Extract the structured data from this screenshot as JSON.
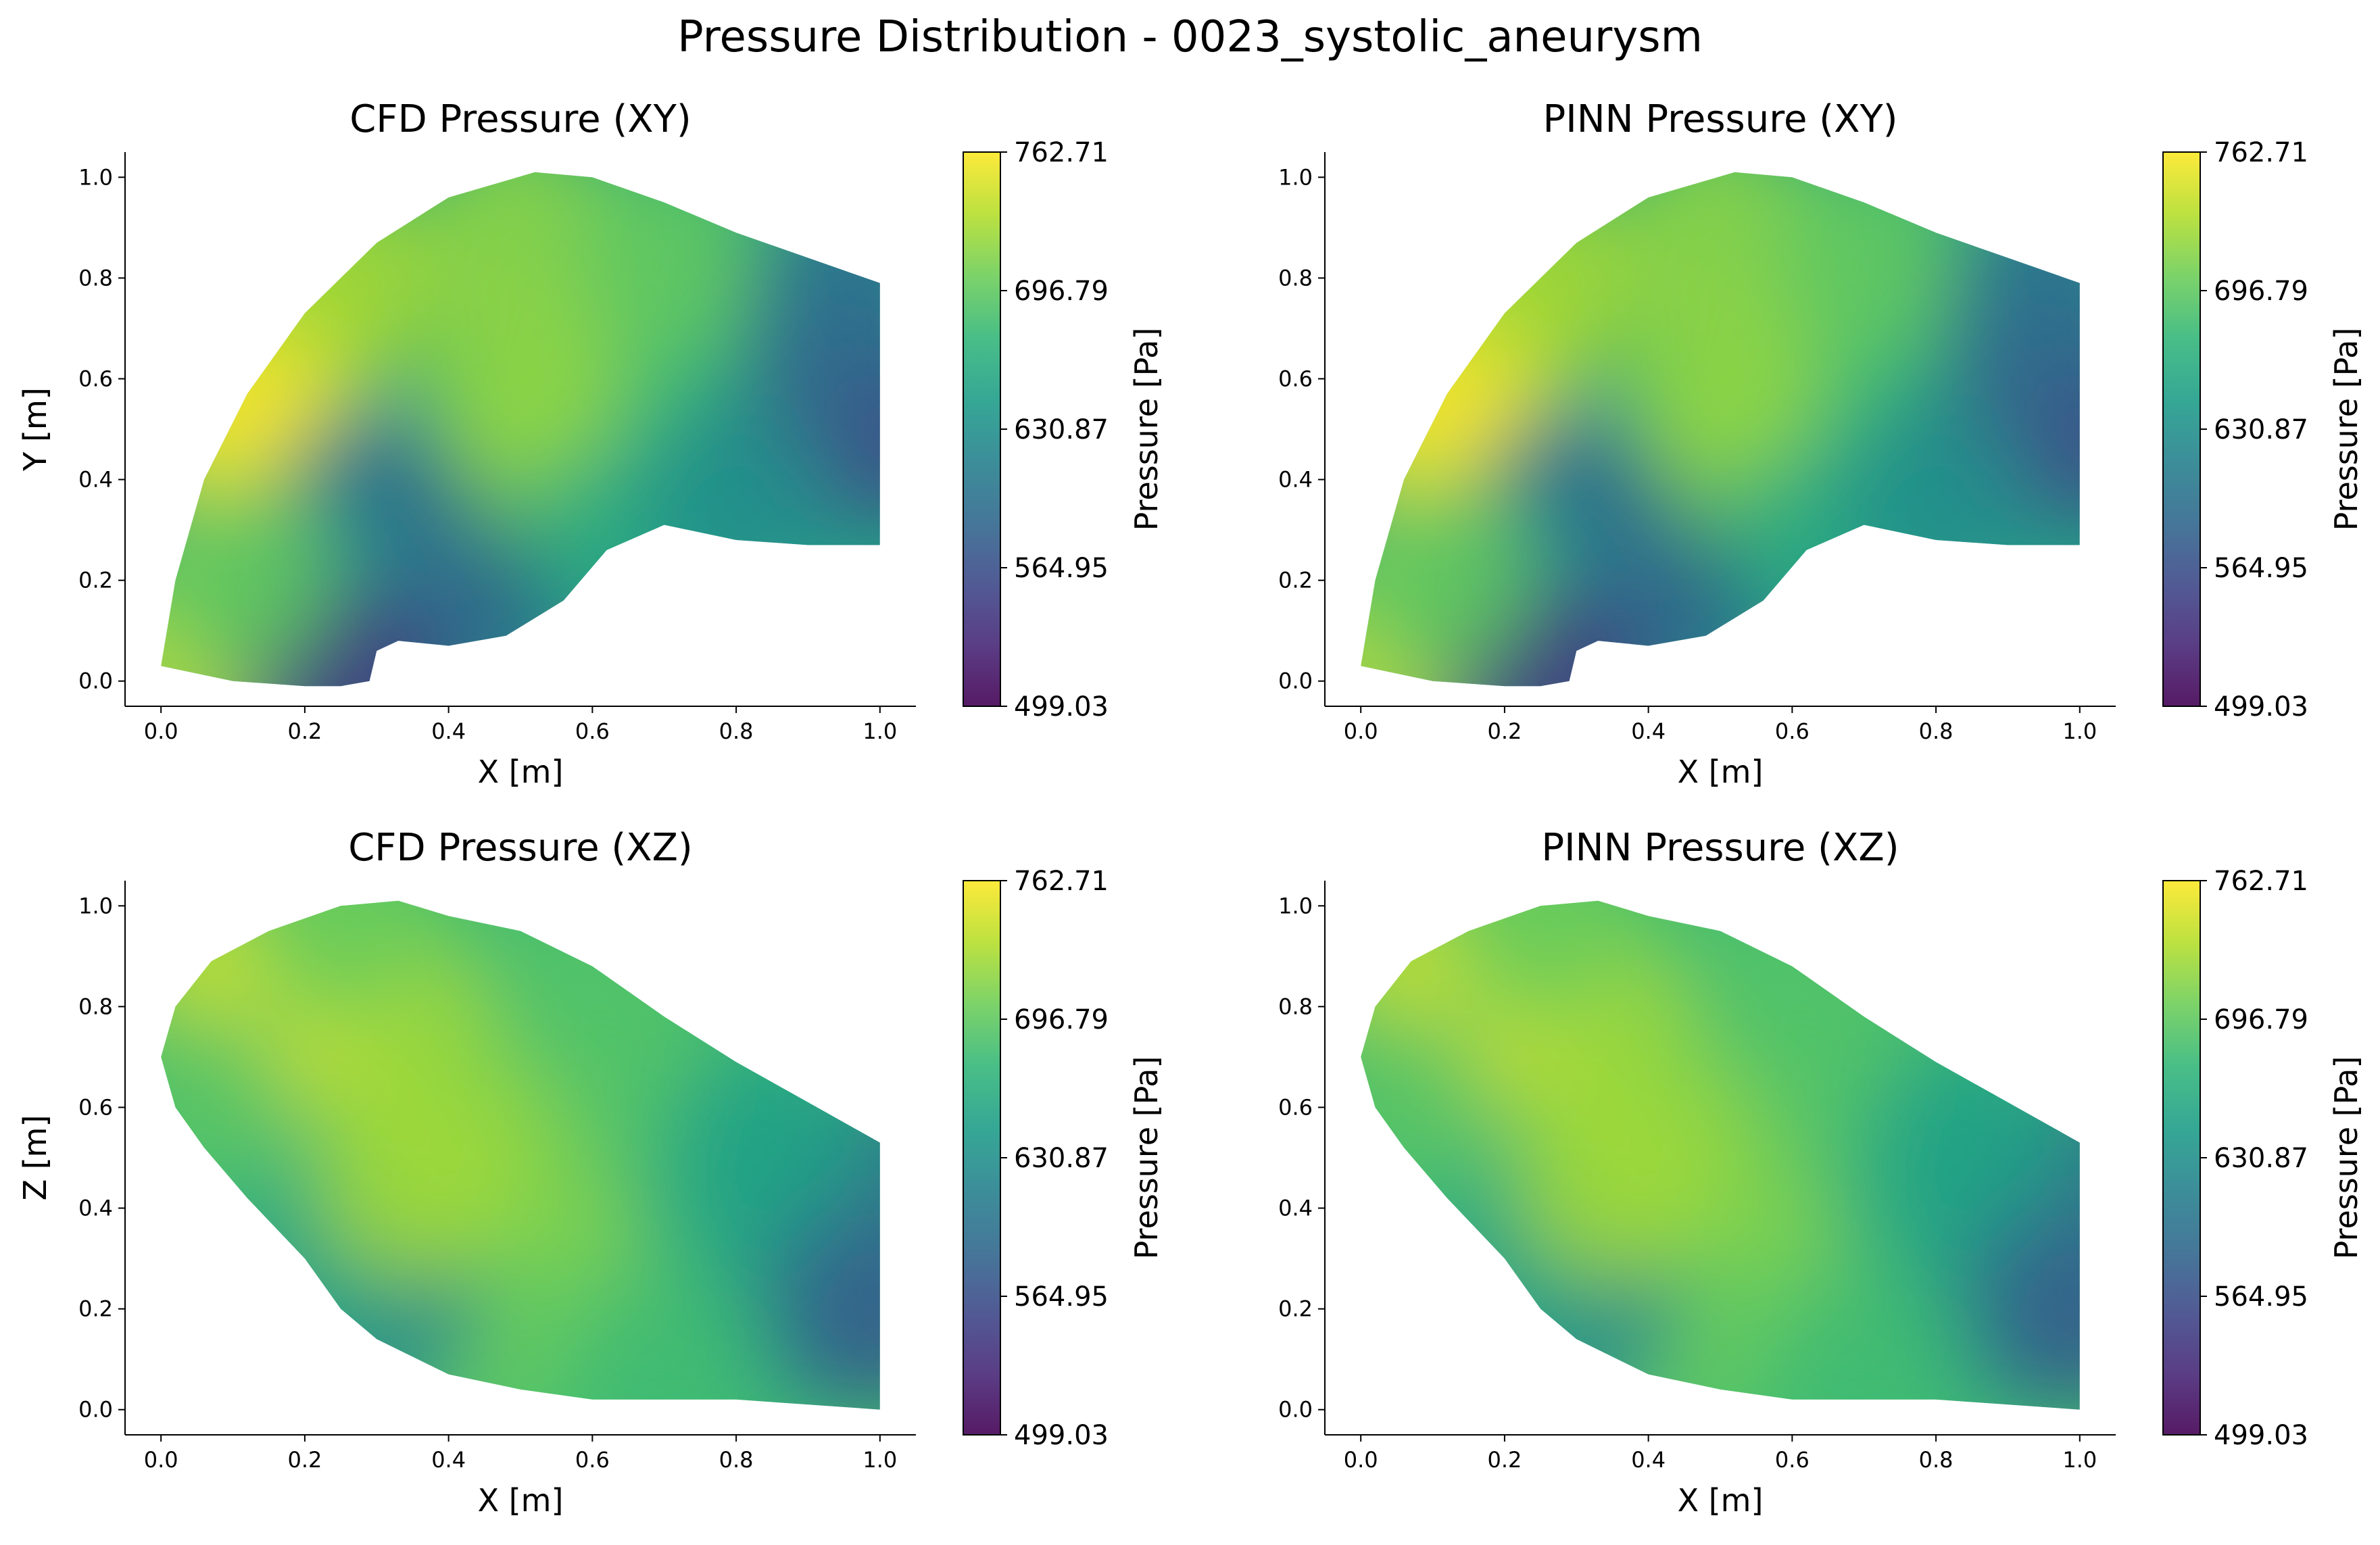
{
  "title": "Pressure Distribution - 0023_systolic_aneurysm",
  "colormap": [
    "#440154",
    "#482878",
    "#3e4989",
    "#31688e",
    "#26828e",
    "#1f9e89",
    "#35b779",
    "#6ece58",
    "#b5de2b",
    "#fde725"
  ],
  "chart_data": [
    {
      "type": "scatter",
      "title": "CFD Pressure (XY)",
      "xlabel": "X [m]",
      "ylabel": "Y [m]",
      "xlim": [
        -0.05,
        1.05
      ],
      "ylim": [
        -0.05,
        1.05
      ],
      "xticks": [
        "0.0",
        "0.2",
        "0.4",
        "0.6",
        "0.8",
        "1.0"
      ],
      "yticks": [
        "0.0",
        "0.2",
        "0.4",
        "0.6",
        "0.8",
        "1.0"
      ],
      "colorbar": {
        "label": "Pressure [Pa]",
        "min": 499.03,
        "max": 762.71,
        "ticks": [
          "762.71",
          "696.79",
          "630.87",
          "564.95",
          "499.03"
        ]
      },
      "outline": [
        [
          0.0,
          0.03
        ],
        [
          0.02,
          0.2
        ],
        [
          0.06,
          0.4
        ],
        [
          0.12,
          0.57
        ],
        [
          0.2,
          0.73
        ],
        [
          0.3,
          0.87
        ],
        [
          0.4,
          0.96
        ],
        [
          0.52,
          1.01
        ],
        [
          0.6,
          1.0
        ],
        [
          0.7,
          0.95
        ],
        [
          0.8,
          0.89
        ],
        [
          0.9,
          0.84
        ],
        [
          1.0,
          0.79
        ],
        [
          1.0,
          0.27
        ],
        [
          0.9,
          0.27
        ],
        [
          0.8,
          0.28
        ],
        [
          0.7,
          0.31
        ],
        [
          0.62,
          0.26
        ],
        [
          0.56,
          0.16
        ],
        [
          0.48,
          0.09
        ],
        [
          0.4,
          0.07
        ],
        [
          0.33,
          0.08
        ],
        [
          0.3,
          0.06
        ],
        [
          0.29,
          0.0
        ],
        [
          0.25,
          -0.01
        ],
        [
          0.2,
          -0.01
        ],
        [
          0.1,
          0.0
        ]
      ],
      "points": [
        [
          0.03,
          0.05,
          740
        ],
        [
          0.1,
          0.5,
          760
        ],
        [
          0.15,
          0.6,
          760
        ],
        [
          0.25,
          0.8,
          730
        ],
        [
          0.5,
          0.9,
          720
        ],
        [
          0.4,
          0.24,
          505
        ],
        [
          0.33,
          0.2,
          540
        ],
        [
          0.3,
          0.35,
          600
        ],
        [
          0.2,
          0.15,
          640
        ],
        [
          0.45,
          0.15,
          600
        ],
        [
          0.55,
          0.45,
          700
        ],
        [
          0.75,
          0.6,
          680
        ],
        [
          0.9,
          0.5,
          600
        ],
        [
          1.0,
          0.5,
          560
        ],
        [
          0.7,
          0.85,
          700
        ],
        [
          0.25,
          -0.01,
          540
        ],
        [
          0.1,
          0.2,
          700
        ],
        [
          0.65,
          0.3,
          660
        ],
        [
          0.5,
          0.6,
          720
        ],
        [
          0.95,
          0.75,
          590
        ],
        [
          0.8,
          0.35,
          630
        ]
      ]
    },
    {
      "type": "scatter",
      "title": "PINN Pressure (XY)",
      "xlabel": "X [m]",
      "ylabel": "Y [m]",
      "xlim": [
        -0.05,
        1.05
      ],
      "ylim": [
        -0.05,
        1.05
      ],
      "xticks": [
        "0.0",
        "0.2",
        "0.4",
        "0.6",
        "0.8",
        "1.0"
      ],
      "yticks": [
        "0.0",
        "0.2",
        "0.4",
        "0.6",
        "0.8",
        "1.0"
      ],
      "colorbar": {
        "label": "Pressure [Pa]",
        "min": 499.03,
        "max": 762.71,
        "ticks": [
          "762.71",
          "696.79",
          "630.87",
          "564.95",
          "499.03"
        ]
      },
      "outline": [
        [
          0.0,
          0.03
        ],
        [
          0.02,
          0.2
        ],
        [
          0.06,
          0.4
        ],
        [
          0.12,
          0.57
        ],
        [
          0.2,
          0.73
        ],
        [
          0.3,
          0.87
        ],
        [
          0.4,
          0.96
        ],
        [
          0.52,
          1.01
        ],
        [
          0.6,
          1.0
        ],
        [
          0.7,
          0.95
        ],
        [
          0.8,
          0.89
        ],
        [
          0.9,
          0.84
        ],
        [
          1.0,
          0.79
        ],
        [
          1.0,
          0.27
        ],
        [
          0.9,
          0.27
        ],
        [
          0.8,
          0.28
        ],
        [
          0.7,
          0.31
        ],
        [
          0.62,
          0.26
        ],
        [
          0.56,
          0.16
        ],
        [
          0.48,
          0.09
        ],
        [
          0.4,
          0.07
        ],
        [
          0.33,
          0.08
        ],
        [
          0.3,
          0.06
        ],
        [
          0.29,
          0.0
        ],
        [
          0.25,
          -0.01
        ],
        [
          0.2,
          -0.01
        ],
        [
          0.1,
          0.0
        ]
      ],
      "points": [
        [
          0.03,
          0.05,
          740
        ],
        [
          0.1,
          0.5,
          760
        ],
        [
          0.15,
          0.6,
          760
        ],
        [
          0.25,
          0.8,
          730
        ],
        [
          0.5,
          0.9,
          720
        ],
        [
          0.4,
          0.24,
          502
        ],
        [
          0.33,
          0.2,
          540
        ],
        [
          0.3,
          0.35,
          600
        ],
        [
          0.2,
          0.15,
          640
        ],
        [
          0.45,
          0.15,
          600
        ],
        [
          0.55,
          0.45,
          700
        ],
        [
          0.75,
          0.6,
          680
        ],
        [
          0.9,
          0.5,
          600
        ],
        [
          1.0,
          0.5,
          560
        ],
        [
          0.7,
          0.85,
          700
        ],
        [
          0.25,
          -0.01,
          540
        ],
        [
          0.1,
          0.2,
          700
        ],
        [
          0.65,
          0.3,
          660
        ],
        [
          0.5,
          0.6,
          720
        ],
        [
          0.95,
          0.75,
          590
        ],
        [
          0.8,
          0.35,
          630
        ]
      ]
    },
    {
      "type": "scatter",
      "title": "CFD Pressure (XZ)",
      "xlabel": "X [m]",
      "ylabel": "Z [m]",
      "xlim": [
        -0.05,
        1.05
      ],
      "ylim": [
        -0.05,
        1.05
      ],
      "xticks": [
        "0.0",
        "0.2",
        "0.4",
        "0.6",
        "0.8",
        "1.0"
      ],
      "yticks": [
        "0.0",
        "0.2",
        "0.4",
        "0.6",
        "0.8",
        "1.0"
      ],
      "colorbar": {
        "label": "Pressure [Pa]",
        "min": 499.03,
        "max": 762.71,
        "ticks": [
          "762.71",
          "696.79",
          "630.87",
          "564.95",
          "499.03"
        ]
      },
      "outline": [
        [
          0.0,
          0.7
        ],
        [
          0.02,
          0.8
        ],
        [
          0.07,
          0.89
        ],
        [
          0.15,
          0.95
        ],
        [
          0.25,
          1.0
        ],
        [
          0.33,
          1.01
        ],
        [
          0.4,
          0.98
        ],
        [
          0.5,
          0.95
        ],
        [
          0.6,
          0.88
        ],
        [
          0.7,
          0.78
        ],
        [
          0.8,
          0.69
        ],
        [
          0.9,
          0.61
        ],
        [
          1.0,
          0.53
        ],
        [
          1.0,
          0.0
        ],
        [
          0.9,
          0.01
        ],
        [
          0.8,
          0.02
        ],
        [
          0.6,
          0.02
        ],
        [
          0.5,
          0.04
        ],
        [
          0.4,
          0.07
        ],
        [
          0.3,
          0.14
        ],
        [
          0.25,
          0.2
        ],
        [
          0.2,
          0.3
        ],
        [
          0.12,
          0.42
        ],
        [
          0.06,
          0.52
        ],
        [
          0.02,
          0.6
        ]
      ],
      "points": [
        [
          0.15,
          0.77,
          762
        ],
        [
          0.1,
          0.85,
          740
        ],
        [
          0.3,
          0.8,
          735
        ],
        [
          0.4,
          0.6,
          720
        ],
        [
          0.5,
          0.45,
          715
        ],
        [
          0.6,
          0.3,
          710
        ],
        [
          0.45,
          0.15,
          700
        ],
        [
          0.3,
          0.2,
          620
        ],
        [
          0.2,
          0.3,
          650
        ],
        [
          0.05,
          0.6,
          690
        ],
        [
          0.7,
          0.6,
          690
        ],
        [
          0.8,
          0.4,
          660
        ],
        [
          0.9,
          0.2,
          630
        ],
        [
          1.0,
          0.2,
          575
        ],
        [
          1.0,
          0.45,
          590
        ],
        [
          0.25,
          0.97,
          700
        ],
        [
          0.6,
          0.82,
          690
        ],
        [
          0.7,
          0.1,
          680
        ],
        [
          0.35,
          0.45,
          725
        ],
        [
          0.85,
          0.55,
          650
        ]
      ]
    },
    {
      "type": "scatter",
      "title": "PINN Pressure (XZ)",
      "xlabel": "X [m]",
      "ylabel": "Z [m]",
      "xlim": [
        -0.05,
        1.05
      ],
      "ylim": [
        -0.05,
        1.05
      ],
      "xticks": [
        "0.0",
        "0.2",
        "0.4",
        "0.6",
        "0.8",
        "1.0"
      ],
      "yticks": [
        "0.0",
        "0.2",
        "0.4",
        "0.6",
        "0.8",
        "1.0"
      ],
      "colorbar": {
        "label": "Pressure [Pa]",
        "min": 499.03,
        "max": 762.71,
        "ticks": [
          "762.71",
          "696.79",
          "630.87",
          "564.95",
          "499.03"
        ]
      },
      "outline": [
        [
          0.0,
          0.7
        ],
        [
          0.02,
          0.8
        ],
        [
          0.07,
          0.89
        ],
        [
          0.15,
          0.95
        ],
        [
          0.25,
          1.0
        ],
        [
          0.33,
          1.01
        ],
        [
          0.4,
          0.98
        ],
        [
          0.5,
          0.95
        ],
        [
          0.6,
          0.88
        ],
        [
          0.7,
          0.78
        ],
        [
          0.8,
          0.69
        ],
        [
          0.9,
          0.61
        ],
        [
          1.0,
          0.53
        ],
        [
          1.0,
          0.0
        ],
        [
          0.9,
          0.01
        ],
        [
          0.8,
          0.02
        ],
        [
          0.6,
          0.02
        ],
        [
          0.5,
          0.04
        ],
        [
          0.4,
          0.07
        ],
        [
          0.3,
          0.14
        ],
        [
          0.25,
          0.2
        ],
        [
          0.2,
          0.3
        ],
        [
          0.12,
          0.42
        ],
        [
          0.06,
          0.52
        ],
        [
          0.02,
          0.6
        ]
      ],
      "points": [
        [
          0.15,
          0.77,
          760
        ],
        [
          0.1,
          0.85,
          740
        ],
        [
          0.3,
          0.8,
          735
        ],
        [
          0.4,
          0.6,
          720
        ],
        [
          0.5,
          0.45,
          715
        ],
        [
          0.6,
          0.3,
          710
        ],
        [
          0.45,
          0.15,
          700
        ],
        [
          0.3,
          0.2,
          620
        ],
        [
          0.2,
          0.3,
          650
        ],
        [
          0.05,
          0.6,
          690
        ],
        [
          0.7,
          0.6,
          690
        ],
        [
          0.8,
          0.4,
          660
        ],
        [
          0.9,
          0.2,
          630
        ],
        [
          1.0,
          0.2,
          575
        ],
        [
          1.0,
          0.45,
          590
        ],
        [
          0.25,
          0.97,
          700
        ],
        [
          0.6,
          0.82,
          690
        ],
        [
          0.7,
          0.1,
          680
        ],
        [
          0.35,
          0.45,
          725
        ],
        [
          0.85,
          0.55,
          650
        ]
      ]
    }
  ]
}
